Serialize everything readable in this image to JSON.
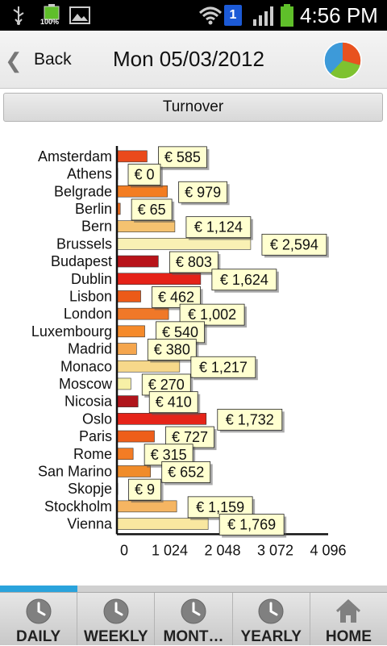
{
  "status_bar": {
    "battery_small_text": "100%",
    "notification_badge": "1",
    "time": "4:56 PM",
    "icons": [
      "usb-icon",
      "battery-charging-icon",
      "image-icon",
      "wifi-icon",
      "notification-icon",
      "signal-icon",
      "battery-icon"
    ]
  },
  "header": {
    "back_label": "Back",
    "title": "Mon 05/03/2012",
    "chart_icon": "pie-chart-icon"
  },
  "section": {
    "label": "Turnover"
  },
  "progress": {
    "fraction": 0.2
  },
  "colors": {
    "bar_palette": [
      "#e8491d",
      "#f7f7c4",
      "#f5852a",
      "#f4a64a",
      "#f7d98a",
      "#f9e9a2",
      "#b3121a",
      "#e52219",
      "#f36f1a",
      "#f58c28"
    ],
    "label_bg": "#ffffd0"
  },
  "chart_data": {
    "type": "bar",
    "orientation": "horizontal",
    "categories": [
      "Amsterdam",
      "Athens",
      "Belgrade",
      "Berlin",
      "Bern",
      "Brussels",
      "Budapest",
      "Dublin",
      "Lisbon",
      "London",
      "Luxembourg",
      "Madrid",
      "Monaco",
      "Moscow",
      "Nicosia",
      "Oslo",
      "Paris",
      "Rome",
      "San Marino",
      "Skopje",
      "Stockholm",
      "Vienna"
    ],
    "values": [
      585,
      0,
      979,
      65,
      1124,
      2594,
      803,
      1624,
      462,
      1002,
      540,
      380,
      1217,
      270,
      410,
      1732,
      727,
      315,
      652,
      9,
      1159,
      1769
    ],
    "data_labels": [
      "€ 585",
      "€ 0",
      "€ 979",
      "€ 65",
      "€ 1,124",
      "€ 2,594",
      "€ 803",
      "€ 1,624",
      "€ 462",
      "€ 1,002",
      "€ 540",
      "€ 380",
      "€ 1,217",
      "€ 270",
      "€ 410",
      "€ 1,732",
      "€ 727",
      "€ 315",
      "€ 652",
      "€ 9",
      "€ 1,159",
      "€ 1,769"
    ],
    "bar_colors": [
      "#ea4a1c",
      "#fbfbd2",
      "#f37d22",
      "#f06a1a",
      "#f5c270",
      "#f9f0b4",
      "#b81319",
      "#e52218",
      "#ec5a18",
      "#f07828",
      "#f58a2a",
      "#f5a64e",
      "#f7d88a",
      "#f7f0a6",
      "#b0141b",
      "#e52419",
      "#ee5e1a",
      "#f47c24",
      "#f08c2a",
      "#fbfbd2",
      "#f5b562",
      "#f9e7a0"
    ],
    "x_ticks": [
      "0",
      "1 024",
      "2 048",
      "3 072",
      "4 096"
    ],
    "xlim": [
      0,
      4096
    ],
    "title": "",
    "xlabel": "",
    "ylabel": "",
    "grid": false,
    "legend": "none"
  },
  "bottom_nav": [
    {
      "label": "DAILY",
      "icon": "clock-icon"
    },
    {
      "label": "WEEKLY",
      "icon": "clock-icon"
    },
    {
      "label": "MONT…",
      "icon": "clock-icon"
    },
    {
      "label": "YEARLY",
      "icon": "clock-icon"
    },
    {
      "label": "HOME",
      "icon": "home-icon"
    }
  ]
}
